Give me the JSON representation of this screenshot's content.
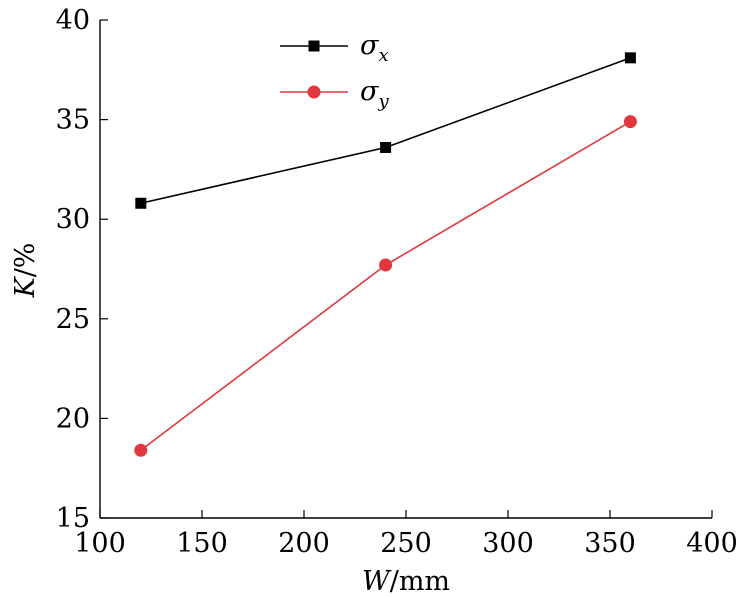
{
  "chart_data": {
    "type": "line",
    "xlabel": {
      "var": "W",
      "unit": "/mm"
    },
    "ylabel": {
      "var": "K",
      "unit": "/%"
    },
    "xlim": [
      100,
      400
    ],
    "ylim": [
      15,
      40
    ],
    "xticks": [
      100,
      150,
      200,
      250,
      300,
      350,
      400
    ],
    "yticks": [
      15,
      20,
      25,
      30,
      35,
      40
    ],
    "x": [
      120,
      240,
      360
    ],
    "legend_position": "top-center",
    "grid": false,
    "series": [
      {
        "name": "σx",
        "symbol": "σ",
        "subscript": "x",
        "marker": "square",
        "color": "#000000",
        "values": [
          30.8,
          33.6,
          38.1
        ]
      },
      {
        "name": "σy",
        "symbol": "σ",
        "subscript": "y",
        "marker": "circle",
        "color": "#e0383e",
        "values": [
          18.4,
          27.7,
          34.9
        ]
      }
    ]
  }
}
